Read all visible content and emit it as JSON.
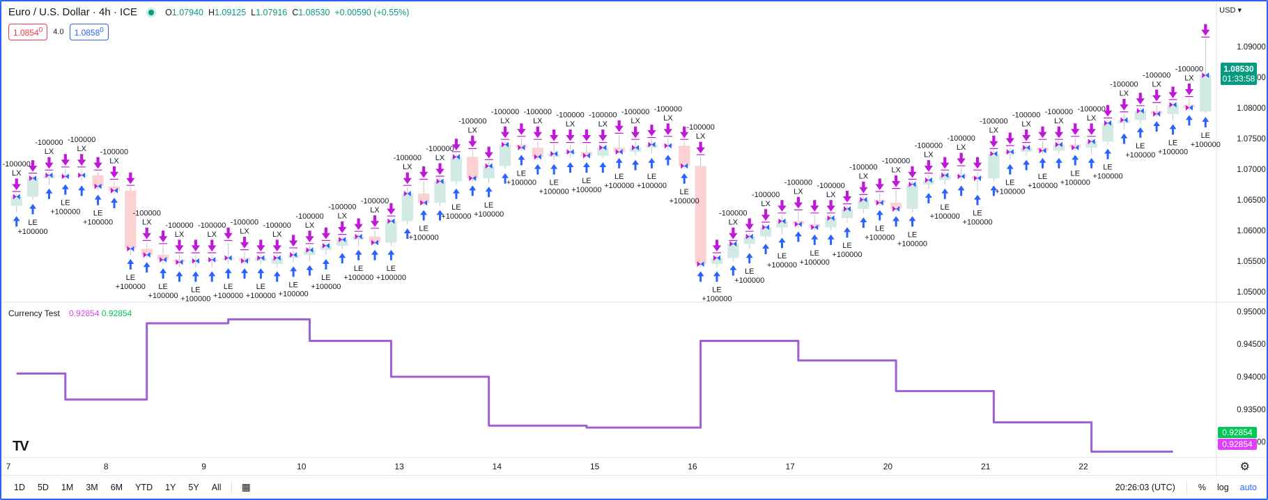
{
  "symbol": {
    "title": "Euro / U.S. Dollar · 4h · ICE",
    "ohlc": [
      {
        "k": "O",
        "v": "1.07940"
      },
      {
        "k": "H",
        "v": "1.09125"
      },
      {
        "k": "L",
        "v": "1.07916"
      },
      {
        "k": "C",
        "v": "1.08530"
      }
    ],
    "change": "+0.00590 (+0.55%)",
    "sell_price": "1.0854",
    "sell_sup": "0",
    "spread": "4.0",
    "buy_price": "1.0858",
    "buy_sup": "0",
    "currency": "USD"
  },
  "price_axis": {
    "labels": [
      "1.09000",
      "1.08500",
      "1.08000",
      "1.07500",
      "1.07000",
      "1.06500",
      "1.06000",
      "1.05500",
      "1.05000"
    ],
    "last_price": "1.08530",
    "countdown": "01:33:58"
  },
  "indicator": {
    "name": "Currency Test",
    "value1": "0.92854",
    "value2": "0.92854",
    "axis_labels": [
      "0.95000",
      "0.94500",
      "0.94000",
      "0.93500",
      "0.93000"
    ],
    "tag_green": "0.92854",
    "tag_purple": "0.92854"
  },
  "time_axis": [
    "7",
    "8",
    "9",
    "10",
    "13",
    "14",
    "15",
    "16",
    "17",
    "20",
    "21",
    "22"
  ],
  "bottom_bar": {
    "timeframes": [
      "1D",
      "5D",
      "1M",
      "3M",
      "6M",
      "YTD",
      "1Y",
      "5Y",
      "All"
    ],
    "clock": "20:26:03 (UTC)",
    "percent": "%",
    "log": "log",
    "auto": "auto"
  },
  "trade_labels": {
    "long_entry": "LE",
    "long_exit": "LX",
    "buy_qty": "+100000",
    "sell_qty": "-100000"
  },
  "colors": {
    "up_candle": "#d1ebe4",
    "down_candle": "#fbd1d4",
    "wick": "#c0c4cc",
    "buy_arrow": "#2962ff",
    "exit_arrow": "#c018d8",
    "indicator_line": "#9c5fd6",
    "last_price_bg": "#089981",
    "tag_green": "#00c853",
    "tag_purple": "#e040fb"
  },
  "chart_data": {
    "type": "candlestick",
    "x": [
      "7",
      "7",
      "7",
      "7",
      "7",
      "7",
      "8",
      "8",
      "8",
      "8",
      "8",
      "8",
      "9",
      "9",
      "9",
      "9",
      "9",
      "9",
      "10",
      "10",
      "10",
      "10",
      "10",
      "10",
      "13",
      "13",
      "13",
      "13",
      "13",
      "13",
      "14",
      "14",
      "14",
      "14",
      "14",
      "14",
      "15",
      "15",
      "15",
      "15",
      "15",
      "15",
      "16",
      "16",
      "16",
      "16",
      "16",
      "16",
      "17",
      "17",
      "17",
      "17",
      "17",
      "17",
      "20",
      "20",
      "20",
      "20",
      "20",
      "20",
      "21",
      "21",
      "21",
      "21",
      "21",
      "21",
      "22",
      "22",
      "22",
      "22",
      "22",
      "22",
      "22",
      "22"
    ],
    "ohlc": [
      [
        1.064,
        1.066,
        1.063,
        1.0655
      ],
      [
        1.0655,
        1.069,
        1.065,
        1.0685
      ],
      [
        1.0685,
        1.0695,
        1.0675,
        1.069
      ],
      [
        1.069,
        1.07,
        1.0682,
        1.0688
      ],
      [
        1.0688,
        1.07,
        1.068,
        1.069
      ],
      [
        1.069,
        1.0695,
        1.0665,
        1.0672
      ],
      [
        1.0672,
        1.068,
        1.066,
        1.0665
      ],
      [
        1.0665,
        1.067,
        1.056,
        1.057
      ],
      [
        1.057,
        1.058,
        1.0555,
        1.056
      ],
      [
        1.056,
        1.0575,
        1.0545,
        1.0552
      ],
      [
        1.0552,
        1.056,
        1.054,
        1.0548
      ],
      [
        1.0548,
        1.056,
        1.054,
        1.055
      ],
      [
        1.055,
        1.056,
        1.054,
        1.0552
      ],
      [
        1.0552,
        1.058,
        1.0545,
        1.0555
      ],
      [
        1.0555,
        1.0565,
        1.0545,
        1.055
      ],
      [
        1.055,
        1.056,
        1.0545,
        1.0555
      ],
      [
        1.0545,
        1.056,
        1.054,
        1.0555
      ],
      [
        1.0555,
        1.0568,
        1.0548,
        1.056
      ],
      [
        1.056,
        1.0575,
        1.055,
        1.0568
      ],
      [
        1.0568,
        1.058,
        1.056,
        1.0575
      ],
      [
        1.0575,
        1.059,
        1.057,
        1.0585
      ],
      [
        1.0585,
        1.0595,
        1.0575,
        1.059
      ],
      [
        1.059,
        1.06,
        1.0575,
        1.058
      ],
      [
        1.058,
        1.062,
        1.0575,
        1.0615
      ],
      [
        1.0615,
        1.067,
        1.061,
        1.066
      ],
      [
        1.066,
        1.068,
        1.064,
        1.0645
      ],
      [
        1.0645,
        1.0685,
        1.064,
        1.068
      ],
      [
        1.068,
        1.0725,
        1.0675,
        1.072
      ],
      [
        1.072,
        1.073,
        1.068,
        1.0685
      ],
      [
        1.0685,
        1.0712,
        1.0678,
        1.0705
      ],
      [
        1.0705,
        1.0745,
        1.07,
        1.074
      ],
      [
        1.074,
        1.075,
        1.073,
        1.0735
      ],
      [
        1.0735,
        1.0745,
        1.0715,
        1.072
      ],
      [
        1.072,
        1.074,
        1.0715,
        1.0725
      ],
      [
        1.0725,
        1.074,
        1.0718,
        1.0728
      ],
      [
        1.0728,
        1.074,
        1.0718,
        1.0722
      ],
      [
        1.0722,
        1.074,
        1.0718,
        1.0735
      ],
      [
        1.0735,
        1.0755,
        1.0725,
        1.0728
      ],
      [
        1.0728,
        1.0745,
        1.0722,
        1.0735
      ],
      [
        1.0735,
        1.0748,
        1.0725,
        1.074
      ],
      [
        1.074,
        1.075,
        1.073,
        1.0738
      ],
      [
        1.0738,
        1.0745,
        1.07,
        1.0705
      ],
      [
        1.0705,
        1.072,
        1.054,
        1.0545
      ],
      [
        1.0545,
        1.056,
        1.054,
        1.0555
      ],
      [
        1.0555,
        1.058,
        1.055,
        1.0578
      ],
      [
        1.0578,
        1.0595,
        1.057,
        1.059
      ],
      [
        1.059,
        1.061,
        1.0585,
        1.0605
      ],
      [
        1.0605,
        1.0625,
        1.0595,
        1.0615
      ],
      [
        1.0615,
        1.063,
        1.0605,
        1.061
      ],
      [
        1.061,
        1.0625,
        1.06,
        1.0605
      ],
      [
        1.0605,
        1.0625,
        1.06,
        1.062
      ],
      [
        1.062,
        1.064,
        1.0612,
        1.0635
      ],
      [
        1.0635,
        1.0655,
        1.0628,
        1.065
      ],
      [
        1.065,
        1.066,
        1.064,
        1.0645
      ],
      [
        1.0645,
        1.0665,
        1.063,
        1.0635
      ],
      [
        1.0635,
        1.068,
        1.063,
        1.0675
      ],
      [
        1.0675,
        1.069,
        1.0668,
        1.0682
      ],
      [
        1.0682,
        1.0695,
        1.0675,
        1.069
      ],
      [
        1.069,
        1.0702,
        1.068,
        1.0688
      ],
      [
        1.0688,
        1.0695,
        1.0665,
        1.0685
      ],
      [
        1.0685,
        1.073,
        1.068,
        1.0725
      ],
      [
        1.0725,
        1.0735,
        1.0715,
        1.0728
      ],
      [
        1.0728,
        1.074,
        1.0722,
        1.0735
      ],
      [
        1.0735,
        1.0745,
        1.0725,
        1.073
      ],
      [
        1.073,
        1.0745,
        1.0725,
        1.074
      ],
      [
        1.074,
        1.075,
        1.073,
        1.0735
      ],
      [
        1.0735,
        1.075,
        1.0725,
        1.0745
      ],
      [
        1.0745,
        1.078,
        1.074,
        1.0775
      ],
      [
        1.0775,
        1.079,
        1.0765,
        1.078
      ],
      [
        1.078,
        1.08,
        1.0775,
        1.0795
      ],
      [
        1.0795,
        1.0805,
        1.0785,
        1.079
      ],
      [
        1.079,
        1.081,
        1.078,
        1.0805
      ],
      [
        1.0805,
        1.0815,
        1.0795,
        1.08
      ],
      [
        1.0794,
        1.0912,
        1.0792,
        1.0853
      ]
    ],
    "indicator_series": [
      {
        "x": "7",
        "values": [
          0.9405,
          0.9405,
          0.9405,
          0.9365,
          0.9365,
          0.9365
        ]
      },
      {
        "x": "8",
        "values": [
          0.9365,
          0.9365,
          0.9482,
          0.9482,
          0.9482,
          0.9482
        ]
      },
      {
        "x": "9",
        "values": [
          0.9482,
          0.9488,
          0.9488,
          0.9488,
          0.9488,
          0.9488
        ]
      },
      {
        "x": "10",
        "values": [
          0.9455,
          0.9455,
          0.9455,
          0.9455,
          0.9455,
          0.94
        ]
      },
      {
        "x": "13",
        "values": [
          0.94,
          0.94,
          0.94,
          0.94,
          0.94,
          0.9325
        ]
      },
      {
        "x": "14",
        "values": [
          0.9325,
          0.9325,
          0.9325,
          0.9325,
          0.9325,
          0.9322
        ]
      },
      {
        "x": "15",
        "values": [
          0.9322,
          0.9322,
          0.9322,
          0.9322,
          0.9322,
          0.9322
        ]
      },
      {
        "x": "16",
        "values": [
          0.9455,
          0.9455,
          0.9455,
          0.9455,
          0.9455,
          0.9455
        ]
      },
      {
        "x": "17",
        "values": [
          0.9425,
          0.9425,
          0.9425,
          0.9425,
          0.9425,
          0.9425
        ]
      },
      {
        "x": "20",
        "values": [
          0.9378,
          0.9378,
          0.9378,
          0.9378,
          0.9378,
          0.9378
        ]
      },
      {
        "x": "21",
        "values": [
          0.933,
          0.933,
          0.933,
          0.933,
          0.933,
          0.933
        ]
      },
      {
        "x": "22",
        "values": [
          0.9285,
          0.9285,
          0.9285,
          0.9285,
          0.9285,
          0.9285
        ]
      }
    ],
    "price_range": [
      1.0485,
      1.096
    ],
    "indicator_range": [
      0.929,
      0.951
    ]
  }
}
